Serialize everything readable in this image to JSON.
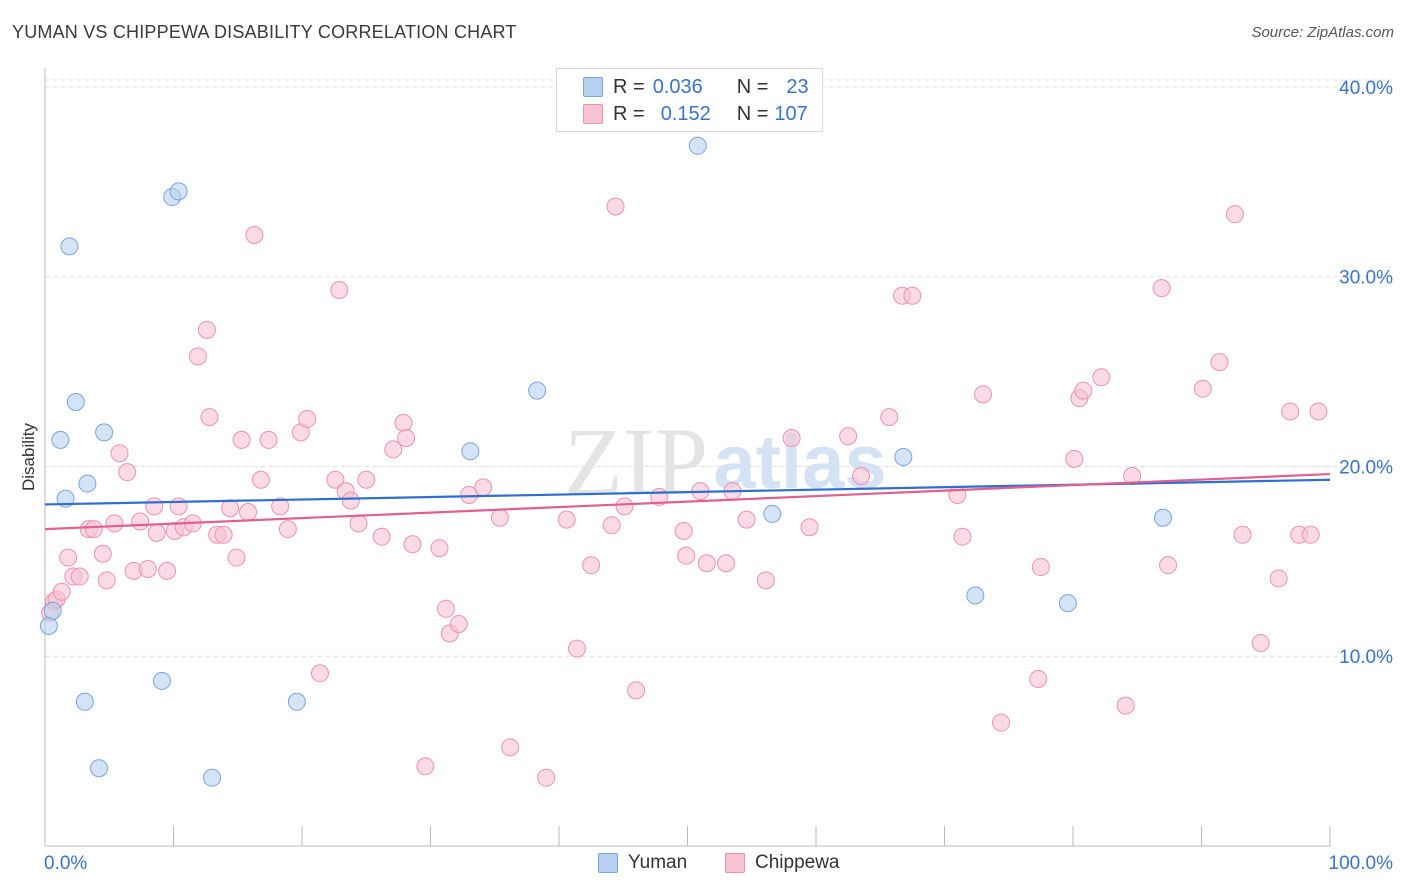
{
  "title": "YUMAN VS CHIPPEWA DISABILITY CORRELATION CHART",
  "source": "Source: ZipAtlas.com",
  "watermark": {
    "zip": "ZIP",
    "atlas": "atlas"
  },
  "legend_top": {
    "rows": [
      {
        "r_label": "R =",
        "r_value": "0.036",
        "n_label": "N =",
        "n_value": "23"
      },
      {
        "r_label": "R =",
        "r_value": "0.152",
        "n_label": "N =",
        "n_value": "107"
      }
    ]
  },
  "colors": {
    "yuman_fill": "#b7d0ef",
    "yuman_stroke": "#7aa6dc",
    "yuman_line": "#2f6fd1",
    "chippewa_fill": "#f6c3d3",
    "chippewa_stroke": "#ec93b0",
    "chippewa_line": "#e0608f",
    "axis_label": "#3b74c7",
    "grid": "#dddddd"
  },
  "chart_data": {
    "type": "scatter",
    "title": "YUMAN VS CHIPPEWA DISABILITY CORRELATION CHART",
    "xlabel": "",
    "ylabel": "Disability",
    "xlim": [
      0,
      100
    ],
    "ylim": [
      0,
      41
    ],
    "x_tick_labels": [
      "0.0%",
      "100.0%"
    ],
    "y_ticks": [
      10,
      20,
      30,
      40
    ],
    "y_tick_labels": [
      "10.0%",
      "20.0%",
      "30.0%",
      "40.0%"
    ],
    "series": [
      {
        "name": "Yuman",
        "r": 0.036,
        "n": 23,
        "trend": {
          "x": [
            0,
            100
          ],
          "y": [
            18.0,
            19.3
          ]
        },
        "points": [
          {
            "x": 0.3,
            "y": 11.6
          },
          {
            "x": 0.6,
            "y": 12.4
          },
          {
            "x": 1.2,
            "y": 21.4
          },
          {
            "x": 1.6,
            "y": 18.3
          },
          {
            "x": 1.9,
            "y": 31.6
          },
          {
            "x": 2.4,
            "y": 23.4
          },
          {
            "x": 3.1,
            "y": 7.6
          },
          {
            "x": 3.3,
            "y": 19.1
          },
          {
            "x": 4.2,
            "y": 4.1
          },
          {
            "x": 4.6,
            "y": 21.8
          },
          {
            "x": 9.1,
            "y": 8.7
          },
          {
            "x": 9.9,
            "y": 34.2
          },
          {
            "x": 10.4,
            "y": 34.5
          },
          {
            "x": 13.0,
            "y": 3.6
          },
          {
            "x": 19.6,
            "y": 7.6
          },
          {
            "x": 33.1,
            "y": 20.8
          },
          {
            "x": 38.3,
            "y": 24.0
          },
          {
            "x": 50.8,
            "y": 36.9
          },
          {
            "x": 56.6,
            "y": 17.5
          },
          {
            "x": 66.8,
            "y": 20.5
          },
          {
            "x": 72.4,
            "y": 13.2
          },
          {
            "x": 79.6,
            "y": 12.8
          },
          {
            "x": 87.0,
            "y": 17.3
          }
        ]
      },
      {
        "name": "Chippewa",
        "r": 0.152,
        "n": 107,
        "trend": {
          "x": [
            0,
            100
          ],
          "y": [
            16.7,
            19.6
          ]
        },
        "points": [
          {
            "x": 0.4,
            "y": 12.3
          },
          {
            "x": 0.7,
            "y": 12.9
          },
          {
            "x": 0.9,
            "y": 13.0
          },
          {
            "x": 1.3,
            "y": 13.4
          },
          {
            "x": 1.8,
            "y": 15.2
          },
          {
            "x": 2.2,
            "y": 14.2
          },
          {
            "x": 2.7,
            "y": 14.2
          },
          {
            "x": 3.4,
            "y": 16.7
          },
          {
            "x": 3.8,
            "y": 16.7
          },
          {
            "x": 4.5,
            "y": 15.4
          },
          {
            "x": 4.8,
            "y": 14.0
          },
          {
            "x": 5.4,
            "y": 17.0
          },
          {
            "x": 5.8,
            "y": 20.7
          },
          {
            "x": 6.4,
            "y": 19.7
          },
          {
            "x": 6.9,
            "y": 14.5
          },
          {
            "x": 7.4,
            "y": 17.1
          },
          {
            "x": 8.0,
            "y": 14.6
          },
          {
            "x": 8.5,
            "y": 17.9
          },
          {
            "x": 8.7,
            "y": 16.5
          },
          {
            "x": 9.5,
            "y": 14.5
          },
          {
            "x": 10.1,
            "y": 16.6
          },
          {
            "x": 10.4,
            "y": 17.9
          },
          {
            "x": 10.8,
            "y": 16.8
          },
          {
            "x": 11.5,
            "y": 17.0
          },
          {
            "x": 11.9,
            "y": 25.8
          },
          {
            "x": 12.6,
            "y": 27.2
          },
          {
            "x": 12.8,
            "y": 22.6
          },
          {
            "x": 13.4,
            "y": 16.4
          },
          {
            "x": 13.9,
            "y": 16.4
          },
          {
            "x": 14.4,
            "y": 17.8
          },
          {
            "x": 14.9,
            "y": 15.2
          },
          {
            "x": 15.3,
            "y": 21.4
          },
          {
            "x": 15.8,
            "y": 17.6
          },
          {
            "x": 16.3,
            "y": 32.2
          },
          {
            "x": 16.8,
            "y": 19.3
          },
          {
            "x": 17.4,
            "y": 21.4
          },
          {
            "x": 18.3,
            "y": 17.9
          },
          {
            "x": 18.9,
            "y": 16.7
          },
          {
            "x": 19.9,
            "y": 21.8
          },
          {
            "x": 20.4,
            "y": 22.5
          },
          {
            "x": 21.4,
            "y": 9.1
          },
          {
            "x": 22.6,
            "y": 19.3
          },
          {
            "x": 22.9,
            "y": 29.3
          },
          {
            "x": 23.4,
            "y": 18.7
          },
          {
            "x": 23.8,
            "y": 18.2
          },
          {
            "x": 24.4,
            "y": 17.0
          },
          {
            "x": 25.0,
            "y": 19.3
          },
          {
            "x": 26.2,
            "y": 16.3
          },
          {
            "x": 27.1,
            "y": 20.9
          },
          {
            "x": 27.9,
            "y": 22.3
          },
          {
            "x": 28.1,
            "y": 21.5
          },
          {
            "x": 28.6,
            "y": 15.9
          },
          {
            "x": 29.6,
            "y": 4.2
          },
          {
            "x": 30.7,
            "y": 15.7
          },
          {
            "x": 31.2,
            "y": 12.5
          },
          {
            "x": 31.5,
            "y": 11.2
          },
          {
            "x": 32.2,
            "y": 11.7
          },
          {
            "x": 33.0,
            "y": 18.5
          },
          {
            "x": 34.1,
            "y": 18.9
          },
          {
            "x": 35.4,
            "y": 17.3
          },
          {
            "x": 36.2,
            "y": 5.2
          },
          {
            "x": 39.0,
            "y": 3.6
          },
          {
            "x": 40.6,
            "y": 17.2
          },
          {
            "x": 41.4,
            "y": 10.4
          },
          {
            "x": 42.5,
            "y": 14.8
          },
          {
            "x": 44.1,
            "y": 16.9
          },
          {
            "x": 44.4,
            "y": 33.7
          },
          {
            "x": 45.1,
            "y": 17.9
          },
          {
            "x": 46.0,
            "y": 8.2
          },
          {
            "x": 47.8,
            "y": 18.4
          },
          {
            "x": 49.7,
            "y": 16.6
          },
          {
            "x": 49.9,
            "y": 15.3
          },
          {
            "x": 51.0,
            "y": 18.7
          },
          {
            "x": 51.5,
            "y": 14.9
          },
          {
            "x": 53.0,
            "y": 14.9
          },
          {
            "x": 53.5,
            "y": 18.7
          },
          {
            "x": 54.6,
            "y": 17.2
          },
          {
            "x": 56.1,
            "y": 14.0
          },
          {
            "x": 58.1,
            "y": 21.5
          },
          {
            "x": 59.5,
            "y": 16.8
          },
          {
            "x": 62.5,
            "y": 21.6
          },
          {
            "x": 63.5,
            "y": 19.5
          },
          {
            "x": 65.7,
            "y": 22.6
          },
          {
            "x": 66.7,
            "y": 29.0
          },
          {
            "x": 67.5,
            "y": 29.0
          },
          {
            "x": 71.0,
            "y": 18.5
          },
          {
            "x": 71.4,
            "y": 16.3
          },
          {
            "x": 73.0,
            "y": 23.8
          },
          {
            "x": 74.4,
            "y": 6.5
          },
          {
            "x": 77.3,
            "y": 8.8
          },
          {
            "x": 77.5,
            "y": 14.7
          },
          {
            "x": 80.1,
            "y": 20.4
          },
          {
            "x": 80.5,
            "y": 23.6
          },
          {
            "x": 80.8,
            "y": 24.0
          },
          {
            "x": 82.2,
            "y": 24.7
          },
          {
            "x": 84.1,
            "y": 7.4
          },
          {
            "x": 84.6,
            "y": 19.5
          },
          {
            "x": 86.9,
            "y": 29.4
          },
          {
            "x": 87.4,
            "y": 14.8
          },
          {
            "x": 90.1,
            "y": 24.1
          },
          {
            "x": 91.4,
            "y": 25.5
          },
          {
            "x": 92.6,
            "y": 33.3
          },
          {
            "x": 93.2,
            "y": 16.4
          },
          {
            "x": 94.6,
            "y": 10.7
          },
          {
            "x": 96.0,
            "y": 14.1
          },
          {
            "x": 96.9,
            "y": 22.9
          },
          {
            "x": 97.6,
            "y": 16.4
          },
          {
            "x": 98.5,
            "y": 16.4
          },
          {
            "x": 99.1,
            "y": 22.9
          }
        ]
      }
    ]
  },
  "bottom_legend": {
    "items": [
      {
        "label": "Yuman"
      },
      {
        "label": "Chippewa"
      }
    ]
  }
}
